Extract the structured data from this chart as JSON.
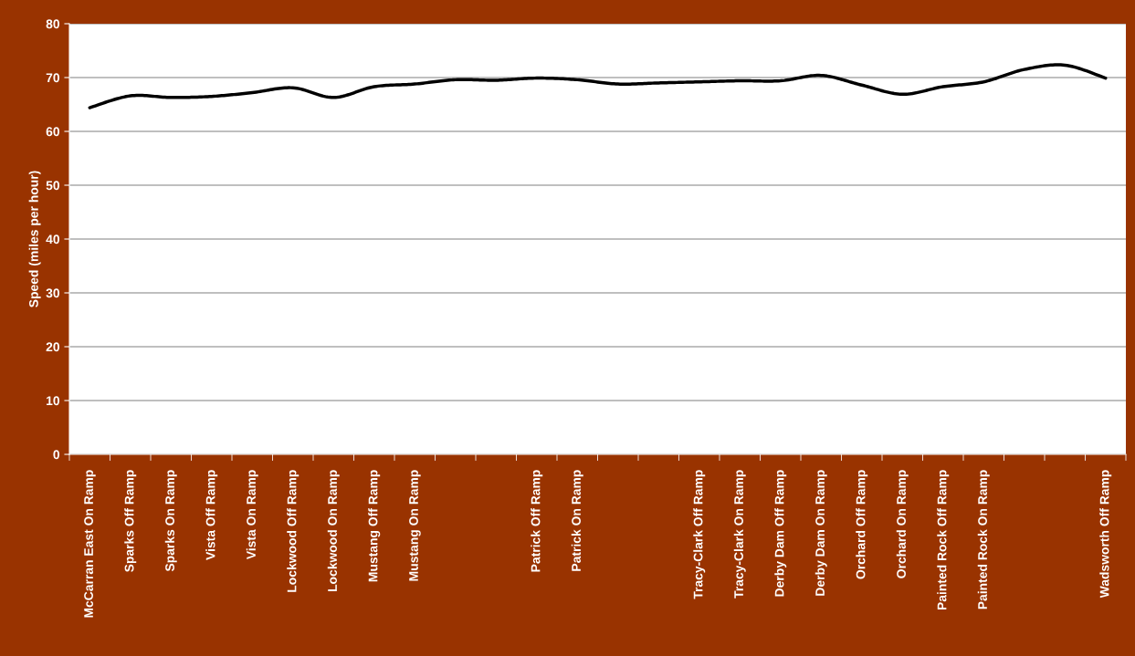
{
  "chart_data": {
    "type": "line",
    "ylabel": "Speed (miles per hour)",
    "categories": [
      "McCarran East On Ramp",
      "Sparks Off Ramp",
      "Sparks On Ramp",
      "Vista Off Ramp",
      "Vista On Ramp",
      "Lockwood Off Ramp",
      "Lockwood On Ramp",
      "Mustang Off Ramp",
      "Mustang On Ramp",
      null,
      null,
      "Patrick Off Ramp",
      "Patrick On Ramp",
      null,
      null,
      "Tracy-Clark Off Ramp",
      "Tracy-Clark On Ramp",
      "Derby Dam Off Ramp",
      "Derby Dam On Ramp",
      "Orchard Off Ramp",
      "Orchard On Ramp",
      "Painted Rock Off Ramp",
      "Painted Rock On Ramp",
      null,
      null,
      "Wadsworth Off Ramp"
    ],
    "series": [
      {
        "color": "#000000",
        "values": [
          64.4,
          66.6,
          66.3,
          66.5,
          67.2,
          68.1,
          66.3,
          68.3,
          68.8,
          69.6,
          69.5,
          69.9,
          69.6,
          68.8,
          69.0,
          69.2,
          69.4,
          69.4,
          70.4,
          68.6,
          66.9,
          68.3,
          69.2,
          71.5,
          72.3,
          69.9
        ]
      }
    ],
    "ylim": [
      0,
      80
    ],
    "yticks": [
      0,
      10,
      20,
      30,
      40,
      50,
      60,
      70,
      80
    ],
    "grid": "y",
    "marker": "none",
    "line_style": "solid"
  }
}
